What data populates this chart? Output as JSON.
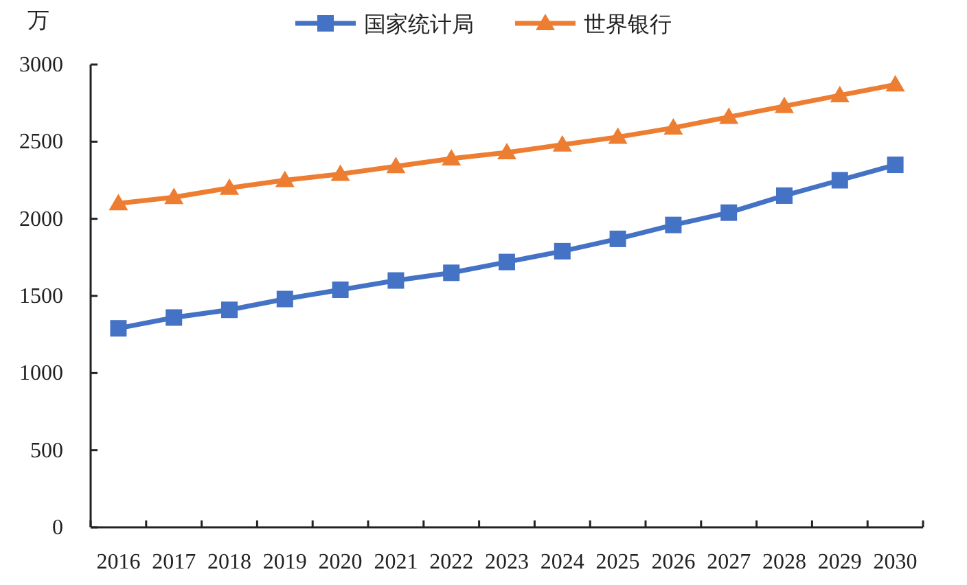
{
  "chart_data": {
    "type": "line",
    "ylabel": "万",
    "categories": [
      "2016",
      "2017",
      "2018",
      "2019",
      "2020",
      "2021",
      "2022",
      "2023",
      "2024",
      "2025",
      "2026",
      "2027",
      "2028",
      "2029",
      "2030"
    ],
    "series": [
      {
        "name": "国家统计局",
        "color": "#4472c4",
        "marker": "square",
        "values": [
          1290,
          1360,
          1410,
          1480,
          1540,
          1600,
          1650,
          1720,
          1790,
          1870,
          1960,
          2040,
          2150,
          2250,
          2350
        ]
      },
      {
        "name": "世界银行",
        "color": "#ed7d31",
        "marker": "triangle",
        "values": [
          2100,
          2140,
          2200,
          2250,
          2290,
          2340,
          2390,
          2430,
          2480,
          2530,
          2590,
          2660,
          2730,
          2800,
          2870
        ]
      }
    ],
    "ylim": [
      0,
      3000
    ],
    "yticks": [
      0,
      500,
      1000,
      1500,
      2000,
      2500,
      3000
    ],
    "grid": false,
    "legend": "top"
  }
}
